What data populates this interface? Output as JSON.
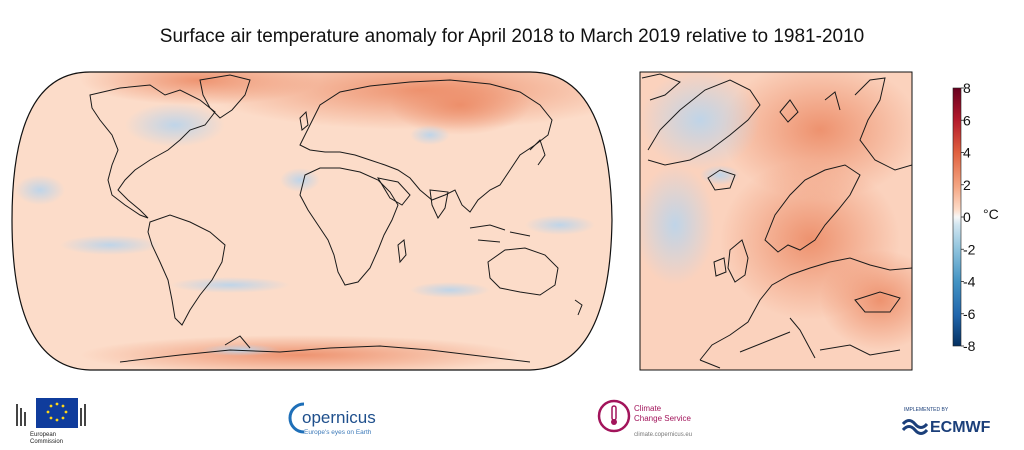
{
  "title": "Surface air temperature anomaly for April 2018 to March 2019 relative to 1981-2010",
  "colorbar": {
    "unit": "°C",
    "ticks": [
      "8",
      "6",
      "4",
      "2",
      "0",
      "-2",
      "-4",
      "-6",
      "-8"
    ],
    "colors": {
      "max": "#67001f",
      "warm": "#e0613f",
      "light_warm": "#fbd5c0",
      "neutral": "#f7f7f7",
      "light_cool": "#c9dcec",
      "cool": "#3a7ab8",
      "min": "#053061"
    }
  },
  "logos": {
    "ec_line1": "European",
    "ec_line2": "Commission",
    "copernicus_name": "opernicus",
    "copernicus_tag": "Europe's eyes on Earth",
    "c3s_line1": "Climate",
    "c3s_line2": "Change Service",
    "c3s_url": "climate.copernicus.eu",
    "ecmwf_small": "IMPLEMENTED BY",
    "ecmwf_name": "ECMWF"
  },
  "colors": {
    "map_base": "#fcd9c6",
    "warm": "#f0a27f",
    "cool": "#d6e5f1"
  }
}
